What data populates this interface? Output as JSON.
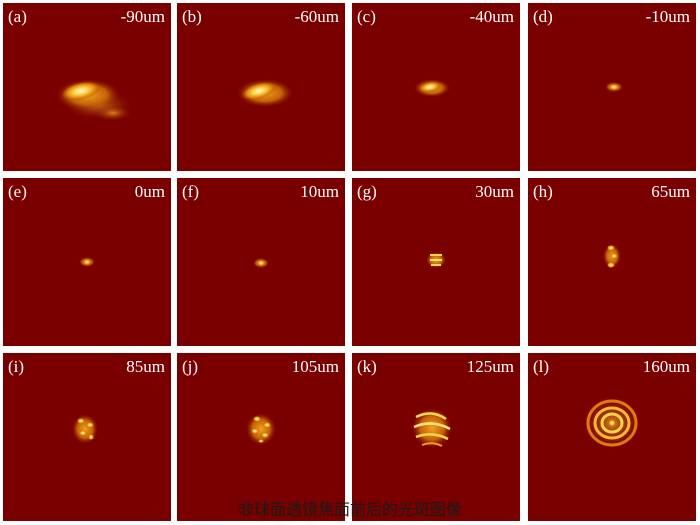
{
  "figure": {
    "caption": "非球面透镜焦面前后的光斑图像",
    "background_color": "#7a0000",
    "panels": [
      {
        "label": "(a)",
        "position": "-90um"
      },
      {
        "label": "(b)",
        "position": "-60um"
      },
      {
        "label": "(c)",
        "position": "-40um"
      },
      {
        "label": "(d)",
        "position": "-10um"
      },
      {
        "label": "(e)",
        "position": "0um"
      },
      {
        "label": "(f)",
        "position": "10um"
      },
      {
        "label": "(g)",
        "position": "30um"
      },
      {
        "label": "(h)",
        "position": "65um"
      },
      {
        "label": "(i)",
        "position": "85um"
      },
      {
        "label": "(j)",
        "position": "105um"
      },
      {
        "label": "(k)",
        "position": "125um"
      },
      {
        "label": "(l)",
        "position": "160um"
      }
    ]
  }
}
